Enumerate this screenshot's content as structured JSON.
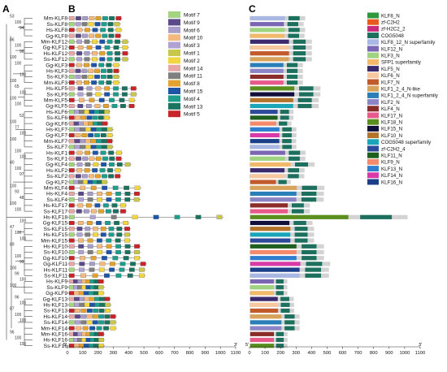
{
  "panels": {
    "a": "A",
    "b": "B",
    "c": "C"
  },
  "taxa": [
    "Mm-KLF8",
    "Ss-KLF8",
    "Hs-KLF8",
    "Gg-KLF8",
    "Mm-KLF12",
    "Gg-KLF12",
    "Hs-KLF12",
    "Ss-KLF12",
    "Gg-KLF3",
    "Hs-KLF3",
    "Ss-KLF3",
    "Mm-KLF3",
    "Hs-KLF5",
    "Ss-KLF5",
    "Mm-KLF5",
    "Gg-KLF5",
    "Hs-KLF6",
    "Ss-KLF6",
    "Gg-KLF6",
    "Hs-KLF7",
    "Gg-KLF7",
    "Mm-KLF7",
    "Ss-KLF7",
    "Hs-KLF1",
    "Ss-KLF1",
    "Gg-KLF4",
    "Hs-KLF2",
    "Ss-KLF2",
    "Gg-KLF2",
    "Mm-KLF4",
    "Hs-KLF4",
    "Ss-KLF4",
    "Hs-KLF17",
    "Ss-KLF17",
    "Hs-KLF18",
    "Gg-KLF15",
    "Ss-KLF15",
    "Hs-KLF15",
    "Mm-KLF15",
    "Hs-KLF10",
    "Ss-KLF10",
    "Gg-KLF10",
    "Gg-KLF11",
    "Hs-KLF11",
    "Ss-KLF11",
    "Hs-KLF9",
    "Ss-KLF9",
    "Gg-KLF9",
    "Gg-KLF13",
    "Hs-KLF13",
    "Ss-KLF13",
    "Hs-KLF14",
    "Ss-KLF14",
    "Mm-KLF14",
    "Mm-KLF16",
    "Hs-KLF16",
    "Ss-KLF16"
  ],
  "bootstrap": [
    "53",
    "100",
    "94",
    "86",
    "100",
    "96",
    "100",
    "100",
    "100",
    "100",
    "65",
    "100",
    "100",
    "100",
    "52",
    "100",
    "77",
    "100",
    "100",
    "100",
    "100",
    "40",
    "100",
    "97",
    "100",
    "93",
    "48",
    "100",
    "100",
    "100",
    "47",
    "100",
    "100",
    "89",
    "100",
    "99",
    "100",
    "99",
    "100",
    "100",
    "96",
    "100",
    "87",
    "100",
    "100",
    "96",
    "100",
    "100"
  ],
  "motifs": [
    {
      "name": "Motif 7",
      "color": "#a5d481"
    },
    {
      "name": "Motif 9",
      "color": "#5b4a8b"
    },
    {
      "name": "Motif 6",
      "color": "#a89cc8"
    },
    {
      "name": "Motif 10",
      "color": "#f4b97d"
    },
    {
      "name": "Motif 3",
      "color": "#b0a3d4"
    },
    {
      "name": "Motif 1",
      "color": "#c8c74a"
    },
    {
      "name": "Motif 2",
      "color": "#f2d640"
    },
    {
      "name": "Motif 14",
      "color": "#e6a7a6"
    },
    {
      "name": "Motif 11",
      "color": "#7f7f7f"
    },
    {
      "name": "Motif 8",
      "color": "#e3a12f"
    },
    {
      "name": "Motif 15",
      "color": "#1f55a8"
    },
    {
      "name": "Motif 4",
      "color": "#1d9e8c"
    },
    {
      "name": "Motif 13",
      "color": "#19735e"
    },
    {
      "name": "Motif 5",
      "color": "#c8242a"
    }
  ],
  "domains": [
    {
      "name": "KLF8_N",
      "color": "#2f9a3c"
    },
    {
      "name": "zf-C2H2",
      "color": "#e85a1b"
    },
    {
      "name": "zf-H2C2_2",
      "color": "#c92a7c"
    },
    {
      "name": "COG5048",
      "color": "#1d6f5e"
    },
    {
      "name": "KLF8_12_N superfamily",
      "color": "#a9b7e3"
    },
    {
      "name": "KLF12_N",
      "color": "#7a66b3"
    },
    {
      "name": "KLF3_N",
      "color": "#9fd37f"
    },
    {
      "name": "SFP1 superfamily",
      "color": "#f3b96b"
    },
    {
      "name": "KLF5_N",
      "color": "#3c2a6e"
    },
    {
      "name": "KLF6_N",
      "color": "#f7c7a0"
    },
    {
      "name": "KLF7_N",
      "color": "#c25a2b"
    },
    {
      "name": "KLF1_2_4_N-like",
      "color": "#d7a25a"
    },
    {
      "name": "KLF1_2_4_N superfamily",
      "color": "#2a7fb8"
    },
    {
      "name": "KLF2_N",
      "color": "#8b84c6"
    },
    {
      "name": "KLF4_N",
      "color": "#8a2c2a"
    },
    {
      "name": "KLF17_N",
      "color": "#e85a8a"
    },
    {
      "name": "KLF18_N",
      "color": "#5b8f1d"
    },
    {
      "name": "KLF15_N",
      "color": "#10103a"
    },
    {
      "name": "KLF10_N",
      "color": "#b3732b"
    },
    {
      "name": "COG5048 superfamily",
      "color": "#1aa6b8"
    },
    {
      "name": "zf-C2H2_4",
      "color": "#2d4a9a"
    },
    {
      "name": "KLF11_N",
      "color": "#1f5f1f"
    },
    {
      "name": "KLF9_N",
      "color": "#f28a6b"
    },
    {
      "name": "KLF13_N",
      "color": "#2f7fd1"
    },
    {
      "name": "KLF14_N",
      "color": "#d93aa8"
    },
    {
      "name": "KLF16_N",
      "color": "#1c3f8a"
    }
  ],
  "axis": {
    "ticks": [
      "0",
      "100",
      "200",
      "300",
      "400",
      "500",
      "600",
      "700",
      "800",
      "900",
      "1000",
      "1100"
    ],
    "prime5": "5'",
    "prime3": "3'"
  },
  "lengths": [
    359,
    349,
    359,
    355,
    402,
    402,
    402,
    402,
    344,
    344,
    344,
    344,
    457,
    457,
    446,
    445,
    283,
    283,
    270,
    302,
    302,
    301,
    302,
    362,
    360,
    419,
    355,
    353,
    266,
    483,
    479,
    478,
    389,
    389,
    1019,
    406,
    416,
    416,
    416,
    480,
    480,
    480,
    520,
    512,
    512,
    244,
    244,
    244,
    285,
    288,
    288,
    323,
    323,
    323,
    245,
    245,
    245
  ]
}
